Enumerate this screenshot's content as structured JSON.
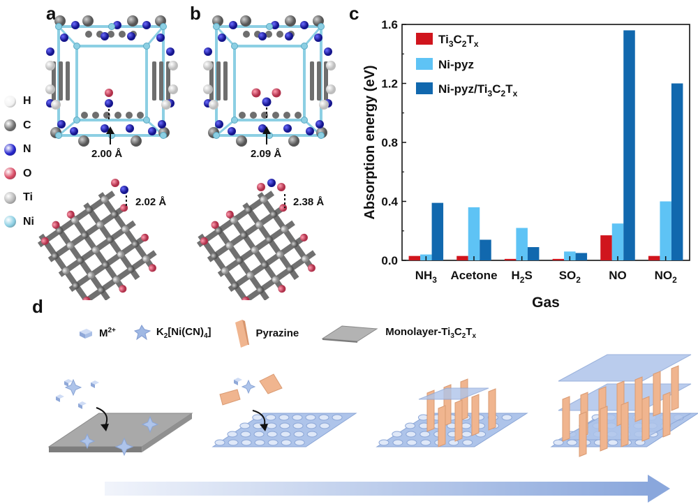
{
  "panels": {
    "a": "a",
    "b": "b",
    "c": "c",
    "d": "d"
  },
  "atoms": [
    {
      "label": "H",
      "color": "#f2f2f2"
    },
    {
      "label": "C",
      "color": "#6e6e6e"
    },
    {
      "label": "N",
      "color": "#2222cc"
    },
    {
      "label": "O",
      "color": "#d94a64"
    },
    {
      "label": "Ti",
      "color": "#b8b8b8"
    },
    {
      "label": "Ni",
      "color": "#8ccfe3"
    }
  ],
  "structures": {
    "a_top_distance": "2.00 Å",
    "a_bottom_distance": "2.02 Å",
    "b_top_distance": "2.09 Å",
    "b_bottom_distance": "2.38 Å"
  },
  "chart_data": {
    "type": "bar",
    "xlabel": "Gas",
    "ylabel": "Absorption energy (eV)",
    "ylim": [
      0,
      1.6
    ],
    "yticks": [
      "0.0",
      "0.4",
      "0.8",
      "1.2",
      "1.6"
    ],
    "categories": [
      {
        "base": "NH",
        "sub": "3"
      },
      {
        "base": "Acetone",
        "sub": ""
      },
      {
        "base": "H",
        "sub": "2",
        "tail": "S"
      },
      {
        "base": "SO",
        "sub": "2"
      },
      {
        "base": "NO",
        "sub": ""
      },
      {
        "base": "NO",
        "sub": "2"
      }
    ],
    "legend_position": "top-left",
    "series": [
      {
        "name": "Ti3C2Tx",
        "color": "#d0151d",
        "values": [
          0.03,
          0.03,
          0.01,
          0.01,
          0.17,
          0.03
        ]
      },
      {
        "name": "Ni-pyz",
        "color": "#5ec3f5",
        "values": [
          0.04,
          0.36,
          0.22,
          0.06,
          0.25,
          0.4
        ]
      },
      {
        "name": "Ni-pyz/Ti3C2Tx",
        "color": "#1168ae",
        "values": [
          0.39,
          0.14,
          0.09,
          0.05,
          1.56,
          1.2
        ]
      }
    ]
  },
  "legend_d": {
    "m2": {
      "base": "M",
      "sup": "2+"
    },
    "k2": {
      "pre": "K",
      "sub1": "2",
      "mid": "[Ni(CN)",
      "sub2": "4",
      "post": "]"
    },
    "pyrazine": "Pyrazine",
    "monolayer": {
      "pre": "Monolayer-Ti",
      "s1": "3",
      "c": "C",
      "s2": "2",
      "t": "T",
      "s3": "x"
    }
  },
  "colors": {
    "arrow_start": "#f1f4fb",
    "arrow_end": "#8aa7dc",
    "mof": "#aec4ea",
    "pyrazine": "#f0b58f",
    "substrate": "#a9a9a9"
  }
}
